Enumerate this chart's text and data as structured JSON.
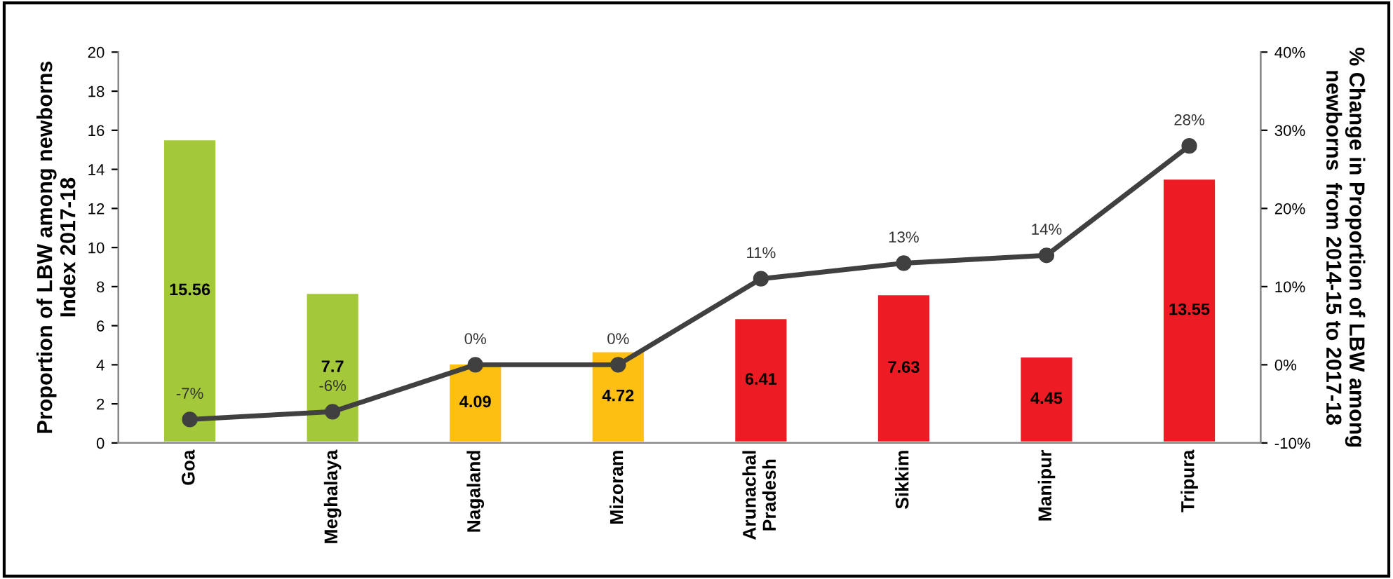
{
  "chart_data": {
    "type": "bar",
    "ylabel": "Proportion of LBW among newborns\nIndex 2017-18",
    "y2label": "% Change in Proportion of LBW among\nnewborns  from 2014-15 to 2017-18",
    "categories": [
      "Goa",
      "Meghalaya",
      "Nagaland",
      "Mizoram",
      "Arunachal\nPradesh",
      "Sikkim",
      "Manipur",
      "Tripura"
    ],
    "series": [
      {
        "values": [
          15.56,
          7.7,
          4.09,
          4.72,
          6.41,
          7.63,
          4.45,
          13.55
        ],
        "colors": [
          "#a3c93a",
          "#a3c93a",
          "#fcbf12",
          "#fcbf12",
          "#ed1c24",
          "#ed1c24",
          "#ed1c24",
          "#ed1c24"
        ],
        "data_labels": true
      },
      {
        "type": "line",
        "axis": "y2",
        "color": "#404040",
        "marker": "circle",
        "values": [
          -7,
          -6,
          0,
          0,
          11,
          13,
          14,
          28
        ],
        "value_labels": [
          "-7%",
          "-6%",
          "0%",
          "0%",
          "11%",
          "13%",
          "14%",
          "28%"
        ]
      }
    ],
    "ylim": [
      0,
      20
    ],
    "yticks": [
      0,
      2,
      4,
      6,
      8,
      10,
      12,
      14,
      16,
      18,
      20
    ],
    "y2lim": [
      -10,
      40
    ],
    "y2ticks": [
      {
        "value": -10,
        "label": "-10%"
      },
      {
        "value": 0,
        "label": "0%"
      },
      {
        "value": 10,
        "label": "10%"
      },
      {
        "value": 20,
        "label": "20%"
      },
      {
        "value": 30,
        "label": "30%"
      },
      {
        "value": 40,
        "label": "40%"
      }
    ],
    "grid": false,
    "legend": false
  }
}
